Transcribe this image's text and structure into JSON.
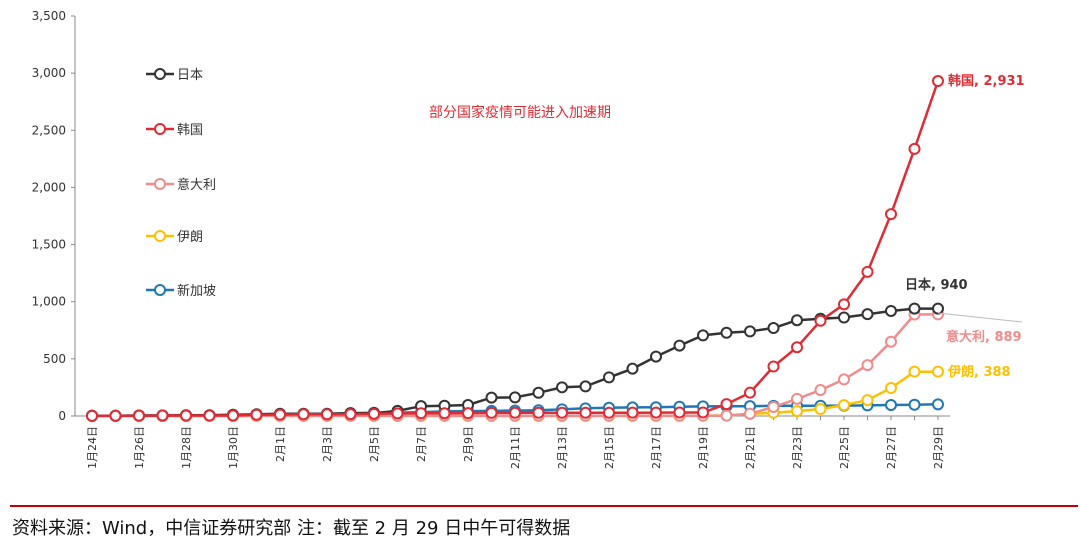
{
  "chart_data": {
    "type": "line",
    "categories": [
      "1月24日",
      "1月25日",
      "1月26日",
      "1月27日",
      "1月28日",
      "1月29日",
      "1月30日",
      "1月31日",
      "2月1日",
      "2月2日",
      "2月3日",
      "2月4日",
      "2月5日",
      "2月6日",
      "2月7日",
      "2月8日",
      "2月9日",
      "2月10日",
      "2月11日",
      "2月12日",
      "2月13日",
      "2月14日",
      "2月15日",
      "2月16日",
      "2月17日",
      "2月18日",
      "2月19日",
      "2月20日",
      "2月21日",
      "2月22日",
      "2月23日",
      "2月24日",
      "2月25日",
      "2月26日",
      "2月27日",
      "2月28日",
      "2月29日"
    ],
    "x_tick_labels": [
      "1月24日",
      "",
      "1月26日",
      "",
      "1月28日",
      "",
      "1月30日",
      "",
      "2月1日",
      "",
      "2月3日",
      "",
      "2月5日",
      "",
      "2月7日",
      "",
      "2月9日",
      "",
      "2月11日",
      "",
      "2月13日",
      "",
      "2月15日",
      "",
      "2月17日",
      "",
      "2月19日",
      "",
      "2月21日",
      "",
      "2月23日",
      "",
      "2月25日",
      "",
      "2月27日",
      "",
      "2月29日"
    ],
    "y_ticks": [
      "0",
      "500",
      "1,000",
      "1,500",
      "2,000",
      "2,500",
      "3,000",
      "3,500"
    ],
    "ylim": [
      0,
      3500
    ],
    "xlabel": "",
    "ylabel": "",
    "title": "",
    "legend_position": "top-left",
    "series": [
      {
        "name": "日本",
        "color": "#333333",
        "values": [
          2,
          2,
          4,
          4,
          7,
          7,
          11,
          15,
          20,
          20,
          20,
          25,
          25,
          45,
          86,
          90,
          96,
          161,
          163,
          203,
          251,
          259,
          338,
          414,
          520,
          616,
          705,
          728,
          740,
          770,
          838,
          851,
          862,
          891,
          919,
          940,
          940
        ]
      },
      {
        "name": "韩国",
        "color": "#e02b35",
        "values": [
          1,
          2,
          3,
          4,
          4,
          4,
          4,
          11,
          12,
          15,
          15,
          16,
          19,
          23,
          24,
          24,
          25,
          27,
          28,
          28,
          28,
          28,
          28,
          29,
          30,
          31,
          31,
          104,
          204,
          433,
          602,
          833,
          977,
          1261,
          1766,
          2337,
          2931
        ]
      },
      {
        "name": "意大利",
        "color": "#f08c8c",
        "values": [
          0,
          0,
          0,
          0,
          0,
          0,
          0,
          2,
          2,
          2,
          2,
          2,
          2,
          2,
          3,
          3,
          3,
          3,
          3,
          3,
          3,
          3,
          3,
          3,
          3,
          3,
          3,
          3,
          20,
          79,
          150,
          227,
          320,
          445,
          650,
          888,
          889
        ]
      },
      {
        "name": "伊朗",
        "color": "#ffc000",
        "values": [
          0,
          0,
          0,
          0,
          0,
          0,
          0,
          0,
          0,
          0,
          0,
          0,
          0,
          0,
          0,
          0,
          0,
          0,
          0,
          0,
          0,
          0,
          0,
          0,
          0,
          0,
          2,
          5,
          18,
          28,
          43,
          61,
          95,
          139,
          245,
          388,
          388
        ]
      },
      {
        "name": "新加坡",
        "color": "#1f77b4",
        "values": [
          3,
          3,
          4,
          5,
          7,
          7,
          10,
          13,
          16,
          18,
          18,
          24,
          28,
          30,
          33,
          40,
          43,
          45,
          47,
          50,
          58,
          67,
          72,
          75,
          77,
          81,
          84,
          85,
          86,
          89,
          89,
          90,
          91,
          93,
          96,
          98,
          102
        ]
      }
    ],
    "end_labels": [
      "韩国, 2,931",
      "日本, 940",
      "意大利, 889",
      "伊朗, 388"
    ],
    "annotation": "部分国家疫情可能进入加速期",
    "annotation_color": "#e02b35"
  },
  "footer": {
    "source": "资料来源：Wind，中信证券研究部   注：截至 2 月 29 日中午可得数据",
    "rule_color": "#c00000"
  }
}
